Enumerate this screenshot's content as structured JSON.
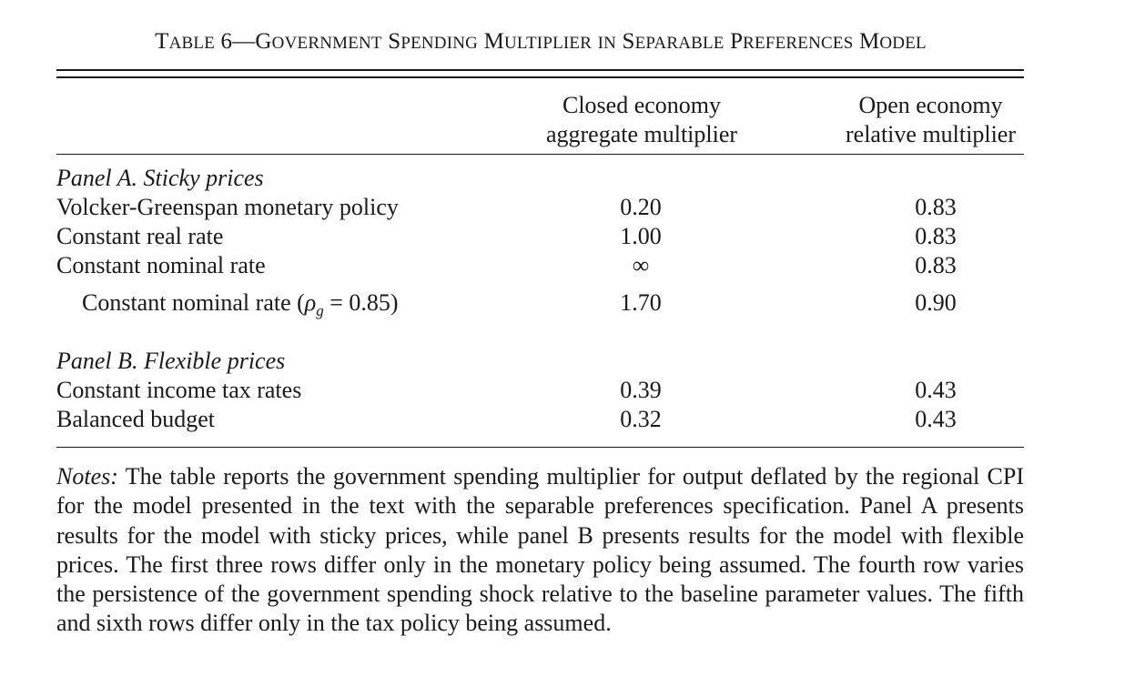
{
  "table": {
    "title_prefix": "Table 6",
    "title_dash": "—",
    "title_main": "Government Spending Multiplier in Separable Preferences Model",
    "col1_line1": "Closed economy",
    "col1_line2": "aggregate multiplier",
    "col2_line1": "Open economy",
    "col2_line2": "relative multiplier",
    "panel_a": "Panel A. Sticky prices",
    "panel_b": "Panel B. Flexible prices",
    "rows": [
      {
        "label": "Volcker-Greenspan monetary policy",
        "closed": "0.20",
        "open": "0.83"
      },
      {
        "label": "Constant real rate",
        "closed": "1.00",
        "open": "0.83"
      },
      {
        "label": "Constant nominal rate",
        "closed": "∞",
        "open": "0.83"
      },
      {
        "label": "Constant nominal rate (",
        "symbol": "ρ",
        "subscript": "g",
        "label_tail": " = 0.85)",
        "closed": "1.70",
        "open": "0.90"
      },
      {
        "label": "Constant income tax rates",
        "closed": "0.39",
        "open": "0.43"
      },
      {
        "label": "Balanced budget",
        "closed": "0.32",
        "open": "0.43"
      }
    ]
  },
  "notes": {
    "label": "Notes:",
    "text": " The table reports the government spending multiplier for output deflated by the regional CPI for the model presented in the text with the separable preferences specification. Panel A presents results for the model with sticky prices, while panel B presents results for the model with flexible prices. The first three rows differ only in the monetary policy being assumed. The fourth row varies the persistence of the government spending shock relative to the baseline parameter values. The fifth and sixth rows differ only in the tax policy being assumed."
  }
}
